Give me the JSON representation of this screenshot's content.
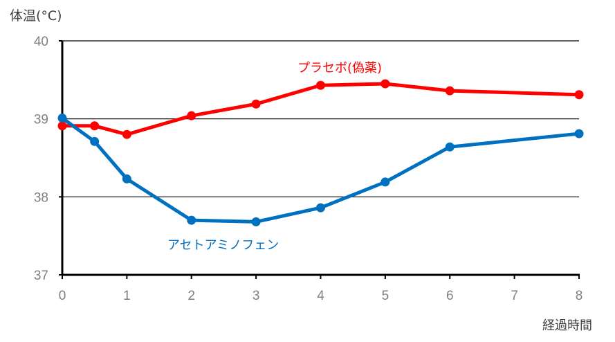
{
  "chart_data": {
    "type": "line",
    "title": "",
    "xlabel": "経過時間",
    "ylabel": "体温(°C)",
    "xlim": [
      0,
      8
    ],
    "ylim": [
      37,
      40
    ],
    "x_ticks": [
      0,
      1,
      2,
      3,
      4,
      5,
      6,
      7,
      8
    ],
    "y_ticks": [
      37,
      38,
      39,
      40
    ],
    "grid": "horizontal",
    "legend": "inline labels",
    "x": [
      0,
      0.5,
      1,
      2,
      3,
      4,
      5,
      6,
      8
    ],
    "series": [
      {
        "name": "プラセボ(偽薬)",
        "color": "#ff0000",
        "values": [
          38.91,
          38.91,
          38.8,
          39.04,
          39.19,
          39.43,
          39.45,
          39.36,
          39.31
        ]
      },
      {
        "name": "アセトアミノフェン",
        "color": "#0070c0",
        "values": [
          39.01,
          38.71,
          38.23,
          37.7,
          37.68,
          37.86,
          38.19,
          38.64,
          38.81
        ]
      }
    ]
  },
  "labels": {
    "ylabel": "体温(°C)",
    "xlabel": "経過時間",
    "placebo": "プラセボ(偽薬)",
    "acetaminophen": "アセトアミノフェン"
  }
}
